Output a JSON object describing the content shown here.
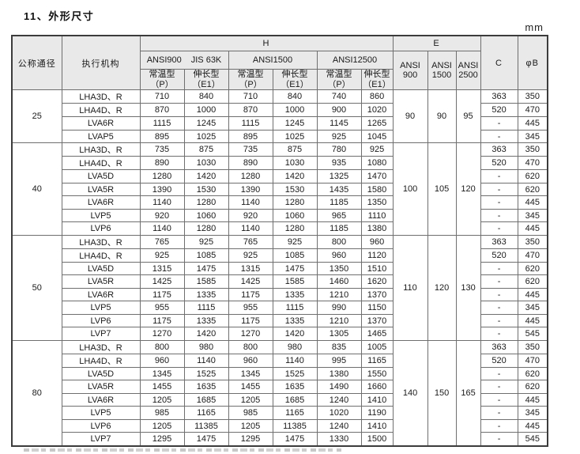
{
  "title": "11、外形尺寸",
  "unit_label": "mm",
  "table": {
    "headers": {
      "col_diameter": "公称通径",
      "col_actuator": "执行机构",
      "h_group": "H",
      "e_group": "E",
      "h_subgroups": [
        {
          "labels": [
            "ANSI900",
            "JIS 63K"
          ]
        },
        {
          "labels": [
            "ANSI1500"
          ]
        },
        {
          "labels": [
            "ANSI12500"
          ]
        }
      ],
      "type_cols": [
        {
          "line1": "常温型",
          "line2": "（P）"
        },
        {
          "line1": "伸长型",
          "line2": "（E1）"
        }
      ],
      "e_cols": [
        {
          "line1": "ANSI",
          "line2": "900"
        },
        {
          "line1": "ANSI",
          "line2": "1500"
        },
        {
          "line1": "ANSI",
          "line2": "2500"
        }
      ],
      "col_c": "C",
      "col_b": "φB"
    },
    "groups": [
      {
        "diameter": "25",
        "e_values": [
          "90",
          "90",
          "95"
        ],
        "rows": [
          {
            "actuator": "LHA3D、R",
            "h": [
              "710",
              "840",
              "710",
              "840",
              "740",
              "860"
            ],
            "c": "363",
            "b": "350"
          },
          {
            "actuator": "LHA4D、R",
            "h": [
              "870",
              "1000",
              "870",
              "1000",
              "900",
              "1020"
            ],
            "c": "520",
            "b": "470"
          },
          {
            "actuator": "LVA6R",
            "h": [
              "1115",
              "1245",
              "1115",
              "1245",
              "1145",
              "1265"
            ],
            "c": "-",
            "b": "445"
          },
          {
            "actuator": "LVAP5",
            "h": [
              "895",
              "1025",
              "895",
              "1025",
              "925",
              "1045"
            ],
            "c": "-",
            "b": "345"
          }
        ]
      },
      {
        "diameter": "40",
        "e_values": [
          "100",
          "105",
          "120"
        ],
        "rows": [
          {
            "actuator": "LHA3D、R",
            "h": [
              "735",
              "875",
              "735",
              "875",
              "780",
              "925"
            ],
            "c": "363",
            "b": "350"
          },
          {
            "actuator": "LHA4D、R",
            "h": [
              "890",
              "1030",
              "890",
              "1030",
              "935",
              "1080"
            ],
            "c": "520",
            "b": "470"
          },
          {
            "actuator": "LVA5D",
            "h": [
              "1280",
              "1420",
              "1280",
              "1420",
              "1325",
              "1470"
            ],
            "c": "-",
            "b": "620"
          },
          {
            "actuator": "LVA5R",
            "h": [
              "1390",
              "1530",
              "1390",
              "1530",
              "1435",
              "1580"
            ],
            "c": "-",
            "b": "620"
          },
          {
            "actuator": "LVA6R",
            "h": [
              "1140",
              "1280",
              "1140",
              "1280",
              "1185",
              "1350"
            ],
            "c": "-",
            "b": "445"
          },
          {
            "actuator": "LVP5",
            "h": [
              "920",
              "1060",
              "920",
              "1060",
              "965",
              "1110"
            ],
            "c": "-",
            "b": "345"
          },
          {
            "actuator": "LVP6",
            "h": [
              "1140",
              "1280",
              "1140",
              "1280",
              "1185",
              "1380"
            ],
            "c": "-",
            "b": "445"
          }
        ]
      },
      {
        "diameter": "50",
        "e_values": [
          "110",
          "120",
          "130"
        ],
        "rows": [
          {
            "actuator": "LHA3D、R",
            "h": [
              "765",
              "925",
              "765",
              "925",
              "800",
              "960"
            ],
            "c": "363",
            "b": "350"
          },
          {
            "actuator": "LHA4D、R",
            "h": [
              "925",
              "1085",
              "925",
              "1085",
              "960",
              "1120"
            ],
            "c": "520",
            "b": "470"
          },
          {
            "actuator": "LVA5D",
            "h": [
              "1315",
              "1475",
              "1315",
              "1475",
              "1350",
              "1510"
            ],
            "c": "-",
            "b": "620"
          },
          {
            "actuator": "LVA5R",
            "h": [
              "1425",
              "1585",
              "1425",
              "1585",
              "1460",
              "1620"
            ],
            "c": "-",
            "b": "620"
          },
          {
            "actuator": "LVA6R",
            "h": [
              "1175",
              "1335",
              "1175",
              "1335",
              "1210",
              "1370"
            ],
            "c": "-",
            "b": "445"
          },
          {
            "actuator": "LVP5",
            "h": [
              "955",
              "1115",
              "955",
              "1115",
              "990",
              "1150"
            ],
            "c": "-",
            "b": "345"
          },
          {
            "actuator": "LVP6",
            "h": [
              "1175",
              "1335",
              "1175",
              "1335",
              "1210",
              "1370"
            ],
            "c": "-",
            "b": "445"
          },
          {
            "actuator": "LVP7",
            "h": [
              "1270",
              "1420",
              "1270",
              "1420",
              "1305",
              "1465"
            ],
            "c": "-",
            "b": "545"
          }
        ]
      },
      {
        "diameter": "80",
        "e_values": [
          "140",
          "150",
          "165"
        ],
        "rows": [
          {
            "actuator": "LHA3D、R",
            "h": [
              "800",
              "980",
              "800",
              "980",
              "835",
              "1005"
            ],
            "c": "363",
            "b": "350"
          },
          {
            "actuator": "LHA4D、R",
            "h": [
              "960",
              "1140",
              "960",
              "1140",
              "995",
              "1165"
            ],
            "c": "520",
            "b": "470"
          },
          {
            "actuator": "LVA5D",
            "h": [
              "1345",
              "1525",
              "1345",
              "1525",
              "1380",
              "1550"
            ],
            "c": "-",
            "b": "620"
          },
          {
            "actuator": "LVA5R",
            "h": [
              "1455",
              "1635",
              "1455",
              "1635",
              "1490",
              "1660"
            ],
            "c": "-",
            "b": "620"
          },
          {
            "actuator": "LVA6R",
            "h": [
              "1205",
              "1685",
              "1205",
              "1685",
              "1240",
              "1410"
            ],
            "c": "-",
            "b": "445"
          },
          {
            "actuator": "LVP5",
            "h": [
              "985",
              "1165",
              "985",
              "1165",
              "1020",
              "1190"
            ],
            "c": "-",
            "b": "345"
          },
          {
            "actuator": "LVP6",
            "h": [
              "1205",
              "11385",
              "1205",
              "11385",
              "1240",
              "1410"
            ],
            "c": "-",
            "b": "445"
          },
          {
            "actuator": "LVP7",
            "h": [
              "1295",
              "1475",
              "1295",
              "1475",
              "1330",
              "1500"
            ],
            "c": "-",
            "b": "545"
          }
        ]
      }
    ]
  }
}
